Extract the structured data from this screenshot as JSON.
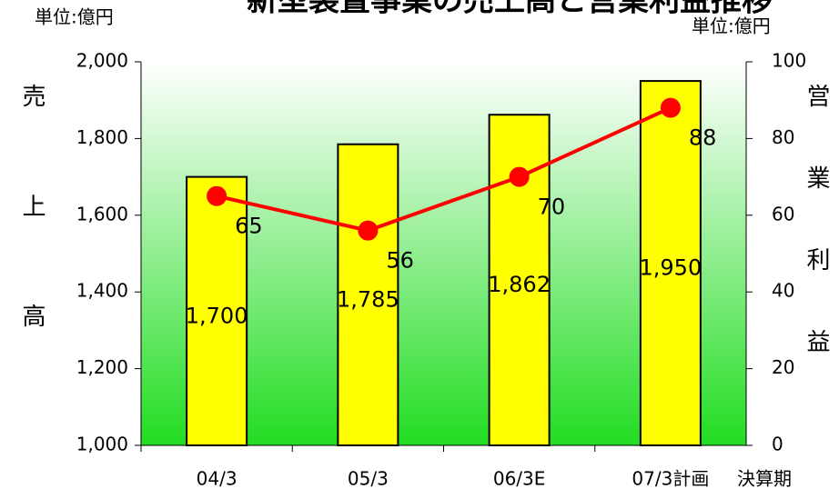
{
  "chart_data": {
    "type": "bar_line",
    "title": "新型装置事業の売上高と営業利益推移",
    "unit_left": "単位:億円",
    "unit_right": "単位:億円",
    "y_label": "売上高",
    "y2_label": "営業利益",
    "x_label": "決算期",
    "categories": [
      "04/3",
      "05/3",
      "06/3E",
      "07/3計画"
    ],
    "series": [
      {
        "name": "売上高",
        "type": "bar",
        "color": "#ffff00",
        "values": [
          1700,
          1785,
          1862,
          1950
        ],
        "value_labels": [
          "1,700",
          "1,785",
          "1,862",
          "1,950"
        ]
      },
      {
        "name": "営業利益",
        "type": "line",
        "axis": "y2",
        "color": "#ff0000",
        "values": [
          65,
          56,
          70,
          88
        ]
      }
    ],
    "ylim": [
      1000,
      2000
    ],
    "yticks": [
      {
        "value": 1000,
        "label": "1,000"
      },
      {
        "value": 1200,
        "label": "1,200"
      },
      {
        "value": 1400,
        "label": "1,400"
      },
      {
        "value": 1600,
        "label": "1,600"
      },
      {
        "value": 1800,
        "label": "1,800"
      },
      {
        "value": 2000,
        "label": "2,000"
      }
    ],
    "y2lim": [
      0,
      100
    ],
    "y2ticks": [
      0,
      20,
      40,
      60,
      80,
      100
    ]
  }
}
